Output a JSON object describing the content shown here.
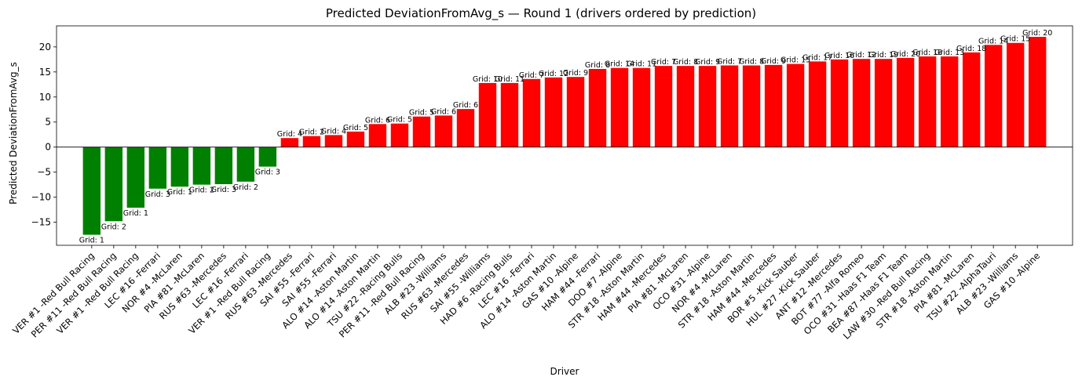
{
  "chart_data": {
    "type": "bar",
    "title": "Predicted DeviationFromAvg_s — Round 1 (drivers ordered by prediction)",
    "xlabel": "Driver",
    "ylabel": "Predicted DeviationFromAvg_s",
    "ylim": [
      -19.6,
      24.2
    ],
    "yticks": [
      -15,
      -10,
      -5,
      0,
      5,
      10,
      15,
      20
    ],
    "zero_line": true,
    "grid": false,
    "colors": {
      "negative": "#008000",
      "positive": "#ff0000"
    },
    "categories": [
      "VER #1 -Red Bull Racing",
      "PER #11 -Red Bull Racing",
      "VER #1 -Red Bull Racing",
      "LEC #16 -Ferrari",
      "NOR #4 -McLaren",
      "PIA #81 -McLaren",
      "RUS #63 -Mercedes",
      "LEC #16 -Ferrari",
      "VER #1 -Red Bull Racing",
      "RUS #63 -Mercedes",
      "SAI #55 -Ferrari",
      "SAI #55 -Ferrari",
      "ALO #14 -Aston Martin",
      "ALO #14 -Aston Martin",
      "TSU #22 -Racing Bulls",
      "PER #11 -Red Bull Racing",
      "ALB #23 -Williams",
      "RUS #63 -Mercedes",
      "SAI #55 -Williams",
      "HAD #6 -Racing Bulls",
      "LEC #16 -Ferrari",
      "ALO #14 -Aston Martin",
      "GAS #10 -Alpine",
      "HAM #44 -Ferrari",
      "DOO #7 -Alpine",
      "STR #18 -Aston Martin",
      "HAM #44 -Mercedes",
      "PIA #81 -McLaren",
      "OCO #31 -Alpine",
      "NOR #4 -McLaren",
      "STR #18 -Aston Martin",
      "HAM #44 -Mercedes",
      "BOR #5 -Kick Sauber",
      "HUL #27 -Kick Sauber",
      "ANT #12 -Mercedes",
      "BOT #77 -Alfa Romeo",
      "OCO #31 -Haas F1 Team",
      "BEA #87 -Haas F1 Team",
      "LAW #30 -Red Bull Racing",
      "STR #18 -Aston Martin",
      "PIA #81 -McLaren",
      "TSU #22 -AlphaTauri",
      "ALB #23 -Williams",
      "GAS #10 -Alpine"
    ],
    "values": [
      -17.5,
      -14.8,
      -12.1,
      -8.3,
      -7.9,
      -7.5,
      -7.4,
      -6.9,
      -3.9,
      1.8,
      2.2,
      2.4,
      3.1,
      4.6,
      4.7,
      6.1,
      6.3,
      7.6,
      12.8,
      12.8,
      13.6,
      13.9,
      14.0,
      15.6,
      15.8,
      15.8,
      16.2,
      16.2,
      16.2,
      16.3,
      16.3,
      16.4,
      16.6,
      17.1,
      17.5,
      17.6,
      17.6,
      17.8,
      18.1,
      18.1,
      18.9,
      20.4,
      20.8,
      22.0
    ],
    "data_labels": [
      "Grid: 1",
      "Grid: 2",
      "Grid: 1",
      "Grid: 3",
      "Grid: 1",
      "Grid: 2",
      "Grid: 3",
      "Grid: 2",
      "Grid: 3",
      "Grid: 4",
      "Grid: 2",
      "Grid: 4",
      "Grid: 5",
      "Grid: 6",
      "Grid: 5",
      "Grid: 5",
      "Grid: 6",
      "Grid: 6",
      "Grid: 10",
      "Grid: 11",
      "Grid: 7",
      "Grid: 12",
      "Grid: 9",
      "Grid: 8",
      "Grid: 14",
      "Grid: 11",
      "Grid: 7",
      "Grid: 8",
      "Grid: 9",
      "Grid: 7",
      "Grid: 8",
      "Grid: 9",
      "Grid: 15",
      "Grid: 17",
      "Grid: 16",
      "Grid: 12",
      "Grid: 19",
      "Grid: 20",
      "Grid: 18",
      "Grid: 13",
      "Grid: 18",
      "Grid: 14",
      "Grid: 15",
      "Grid: 20"
    ]
  }
}
